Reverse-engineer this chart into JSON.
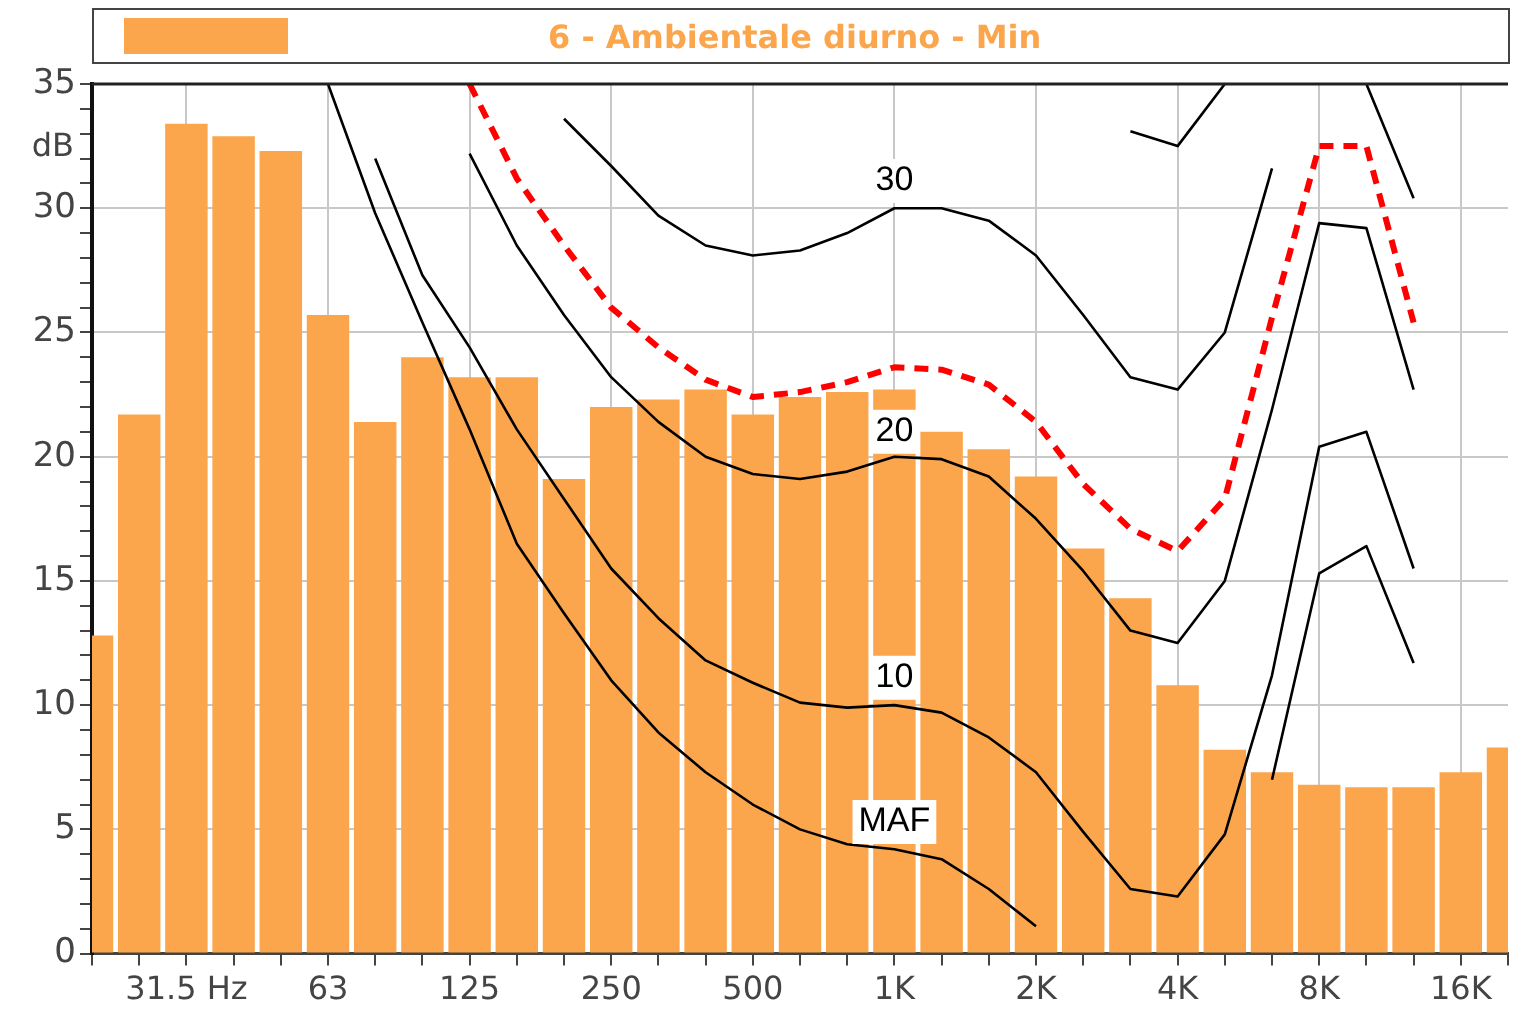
{
  "chart_data": {
    "type": "bar",
    "categories": [
      null,
      null,
      "31.5 Hz",
      null,
      null,
      "63",
      null,
      null,
      "125",
      null,
      null,
      "250",
      null,
      null,
      "500",
      null,
      null,
      "1K",
      null,
      null,
      "2K",
      null,
      null,
      "4K",
      null,
      null,
      "8K",
      null,
      null,
      "16K",
      null
    ],
    "ylabel": "dB",
    "ylim": [
      0,
      35
    ],
    "yticks": [
      0,
      {
        "value": 1,
        "label": null
      },
      {
        "value": 2,
        "label": null
      },
      {
        "value": 3,
        "label": null
      },
      {
        "value": 4,
        "label": null
      },
      5,
      {
        "value": 6,
        "label": null
      },
      {
        "value": 7,
        "label": null
      },
      {
        "value": 8,
        "label": null
      },
      {
        "value": 9,
        "label": null
      },
      10,
      {
        "value": 11,
        "label": null
      },
      {
        "value": 12,
        "label": null
      },
      {
        "value": 13,
        "label": null
      },
      {
        "value": 14,
        "label": null
      },
      15,
      {
        "value": 16,
        "label": null
      },
      {
        "value": 17,
        "label": null
      },
      {
        "value": 18,
        "label": null
      },
      {
        "value": 19,
        "label": null
      },
      20,
      {
        "value": 21,
        "label": null
      },
      {
        "value": 22,
        "label": null
      },
      {
        "value": 23,
        "label": null
      },
      {
        "value": 24,
        "label": null
      },
      25,
      {
        "value": 26,
        "label": null
      },
      {
        "value": 27,
        "label": null
      },
      {
        "value": 28,
        "label": null
      },
      {
        "value": 29,
        "label": null
      },
      30,
      {
        "value": 31,
        "label": null
      },
      {
        "value": 32,
        "label": null
      },
      {
        "value": 33,
        "label": null
      },
      {
        "value": 34,
        "label": null
      },
      35
    ],
    "grid": true,
    "legend": "top",
    "series": [
      {
        "name": "6 - Ambientale diurno - Min",
        "color": "#fba64c",
        "values": [
          12.8,
          21.7,
          33.4,
          32.9,
          32.3,
          25.7,
          21.4,
          24.0,
          23.2,
          23.2,
          19.1,
          22.0,
          22.3,
          22.7,
          21.7,
          22.4,
          22.6,
          22.7,
          21.0,
          20.3,
          19.2,
          16.3,
          14.3,
          10.8,
          8.2,
          7.3,
          6.8,
          6.7,
          6.7,
          7.3,
          8.3
        ]
      },
      {
        "type": "line",
        "color": "#000000",
        "line_style": "solid",
        "values": [
          null,
          null,
          null,
          null,
          null,
          35,
          29.8,
          25.4,
          21.1,
          16.5,
          13.7,
          11.0,
          8.9,
          7.3,
          6.0,
          5.0,
          4.4,
          4.2,
          3.8,
          2.6,
          1.1,
          null,
          null,
          null,
          null,
          7.0,
          15.3,
          16.4,
          11.7,
          null,
          null
        ]
      },
      {
        "type": "line",
        "color": "#000000",
        "line_style": "solid",
        "values": [
          null,
          null,
          null,
          null,
          null,
          null,
          32.0,
          27.3,
          24.4,
          21.1,
          18.3,
          15.5,
          13.5,
          11.8,
          10.9,
          10.1,
          9.9,
          10.0,
          9.7,
          8.7,
          7.3,
          4.9,
          2.6,
          2.3,
          4.8,
          11.2,
          20.4,
          21.0,
          15.5,
          null,
          null
        ]
      },
      {
        "type": "line",
        "color": "#000000",
        "line_style": "solid",
        "values": [
          null,
          null,
          null,
          null,
          null,
          null,
          null,
          null,
          32.2,
          28.5,
          25.7,
          23.2,
          21.4,
          20.0,
          19.3,
          19.1,
          19.4,
          20.0,
          19.9,
          19.2,
          17.5,
          15.4,
          13.0,
          12.5,
          15.0,
          21.9,
          29.4,
          29.2,
          22.7,
          null,
          null
        ]
      },
      {
        "type": "line",
        "color": "#ff0000",
        "line_style": "dashed",
        "values": [
          null,
          null,
          null,
          null,
          null,
          null,
          null,
          null,
          35,
          31.2,
          28.5,
          26.0,
          24.4,
          23.1,
          22.4,
          22.6,
          23.0,
          23.6,
          23.5,
          22.9,
          21.4,
          18.9,
          17.1,
          16.2,
          18.3,
          25.6,
          32.5,
          32.5,
          25.4,
          null,
          null
        ]
      },
      {
        "type": "line",
        "color": "#000000",
        "line_style": "solid",
        "values": [
          null,
          null,
          null,
          null,
          null,
          null,
          null,
          null,
          null,
          null,
          33.6,
          31.7,
          29.7,
          28.5,
          28.1,
          28.3,
          29.0,
          30.0,
          30.0,
          29.5,
          28.1,
          25.7,
          23.2,
          22.7,
          25.0,
          31.6,
          null,
          35,
          30.4,
          null,
          null
        ]
      },
      {
        "type": "line",
        "color": "#000000",
        "line_style": "solid",
        "values": [
          null,
          null,
          null,
          null,
          null,
          null,
          null,
          null,
          null,
          null,
          null,
          null,
          null,
          null,
          null,
          null,
          null,
          null,
          null,
          null,
          null,
          null,
          33.1,
          32.5,
          35,
          null,
          null,
          null,
          null,
          null,
          null
        ]
      }
    ],
    "annotations": [
      {
        "text": "30",
        "x": "1K",
        "y": 31.1
      },
      {
        "text": "20",
        "x": "1K",
        "y": 21.0
      },
      {
        "text": "10",
        "x": "1K",
        "y": 11.1
      },
      {
        "text": "MAF",
        "x": "1K",
        "y": 5.3
      }
    ]
  }
}
